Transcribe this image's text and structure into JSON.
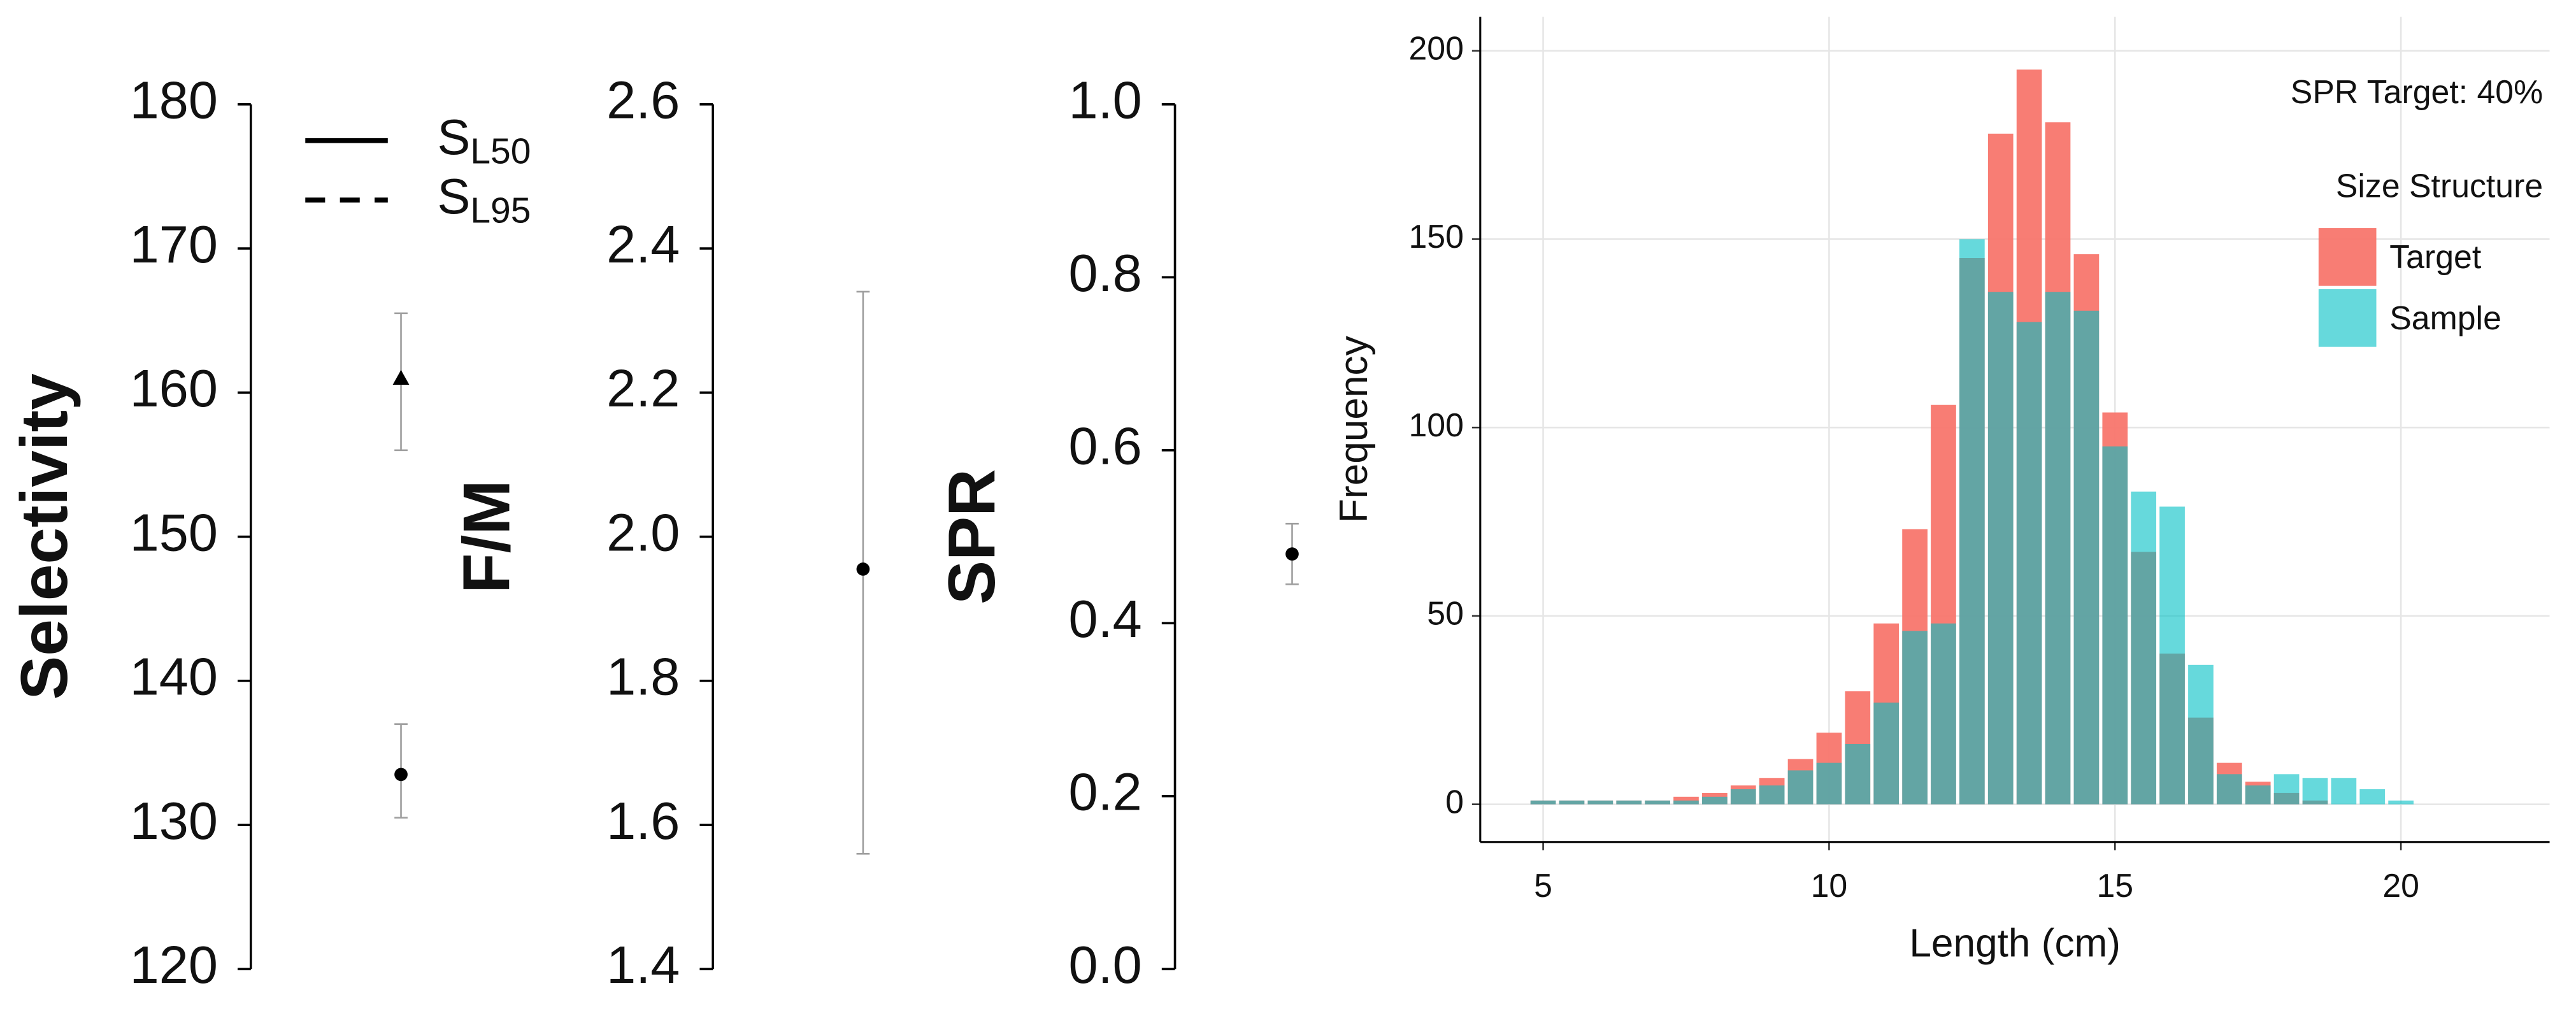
{
  "chart_data": [
    {
      "type": "errorbar",
      "ylabel": "Selectivity",
      "ylim": [
        120,
        180
      ],
      "yticks": [
        120,
        130,
        140,
        150,
        160,
        170,
        180
      ],
      "color": "#000000",
      "error_color": "#9e9e9e",
      "series": [
        {
          "name": "S",
          "subscript": "L50",
          "linestyle": "solid",
          "marker": "circle",
          "values": [
            133.5
          ],
          "lower": [
            130.5
          ],
          "upper": [
            137
          ]
        },
        {
          "name": "S",
          "subscript": "L95",
          "linestyle": "dashed",
          "marker": "triangle",
          "values": [
            161
          ],
          "lower": [
            156
          ],
          "upper": [
            165.5
          ]
        }
      ]
    },
    {
      "type": "errorbar",
      "ylabel": "F/M",
      "ylim": [
        1.4,
        2.6
      ],
      "yticks": [
        1.4,
        1.6,
        1.8,
        {
          "value": 2,
          "label": "2.0"
        },
        2.2,
        2.4,
        2.6
      ],
      "color": "#000000",
      "error_color": "#9e9e9e",
      "series": [
        {
          "marker": "circle",
          "values": [
            1.955
          ],
          "lower": [
            1.56
          ],
          "upper": [
            2.34
          ]
        }
      ]
    },
    {
      "type": "errorbar",
      "ylabel": "SPR",
      "ylim": [
        0,
        1
      ],
      "yticks": [
        {
          "value": 0,
          "label": "0.0"
        },
        0.2,
        0.4,
        0.6,
        0.8,
        {
          "value": 1,
          "label": "1.0"
        }
      ],
      "color": "#000000",
      "error_color": "#9e9e9e",
      "series": [
        {
          "marker": "circle",
          "values": [
            0.48
          ],
          "lower": [
            0.445
          ],
          "upper": [
            0.515
          ]
        }
      ]
    },
    {
      "type": "histogram",
      "xlabel": "Length (cm)",
      "ylabel": "Frequency",
      "annotation": "SPR Target: 40%",
      "legend_title": "Size Structure",
      "legend_position": "right",
      "grid": true,
      "xlim": [
        3.9,
        22.6
      ],
      "xticks": [
        5,
        10,
        15,
        20
      ],
      "ylim": [
        -10,
        209
      ],
      "yticks": [
        0,
        50,
        100,
        150,
        200
      ],
      "bins": [
        4.75,
        5.25,
        5.75,
        6.25,
        6.75,
        7.25,
        7.75,
        8.25,
        8.75,
        9.25,
        9.75,
        10.25,
        10.75,
        11.25,
        11.75,
        12.25,
        12.75,
        13.25,
        13.75,
        14.25,
        14.75,
        15.25,
        15.75,
        16.25,
        16.75,
        17.25,
        17.75,
        18.25,
        18.75,
        19.25,
        19.75,
        20.25
      ],
      "series": [
        {
          "name": "Target",
          "color": "#F8766D",
          "alpha": 0.95,
          "values": [
            1,
            1,
            1,
            1,
            1,
            2,
            3,
            5,
            7,
            12,
            19,
            30,
            48,
            73,
            106,
            145,
            178,
            195,
            181,
            146,
            104,
            67,
            40,
            23,
            11,
            6,
            3,
            1,
            0,
            0,
            0
          ]
        },
        {
          "name": "Sample",
          "color": "#00BFC4",
          "alpha": 0.6,
          "values": [
            1,
            1,
            1,
            1,
            1,
            1,
            2,
            4,
            5,
            9,
            11,
            16,
            27,
            46,
            48,
            150,
            136,
            128,
            136,
            131,
            95,
            83,
            79,
            37,
            8,
            5,
            8,
            7,
            7,
            4,
            1
          ]
        }
      ]
    }
  ]
}
